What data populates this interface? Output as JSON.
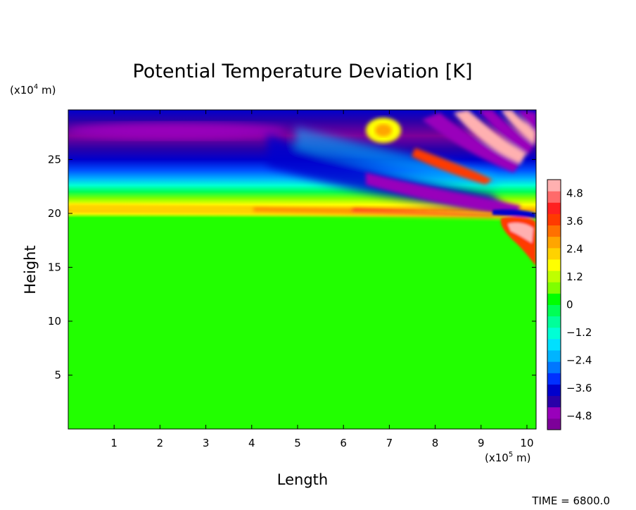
{
  "chart_data": {
    "type": "heatmap",
    "title": "Potential Temperature Deviation [K]",
    "xlabel": "Length",
    "ylabel": "Height",
    "x_unit": "(x10",
    "x_unit_exp": "5",
    "x_unit_tail": " m)",
    "y_unit": "(x10",
    "y_unit_exp": "4",
    "y_unit_tail": " m)",
    "xlim": [
      0,
      10.2
    ],
    "ylim": [
      0,
      29.6
    ],
    "x_ticks": [
      1,
      2,
      3,
      4,
      5,
      6,
      7,
      8,
      9,
      10
    ],
    "x_tick_labels": [
      "1",
      "2",
      "3",
      "4",
      "5",
      "6",
      "7",
      "8",
      "9",
      "10"
    ],
    "y_ticks": [
      5,
      10,
      15,
      20,
      25
    ],
    "y_tick_labels": [
      "5",
      "10",
      "15",
      "20",
      "25"
    ],
    "colorbar": {
      "range": [
        -5.4,
        5.4
      ],
      "ticks": [
        4.8,
        3.6,
        2.4,
        1.2,
        0,
        -1.2,
        -2.4,
        -3.6,
        -4.8
      ],
      "tick_labels": [
        "4.8",
        "3.6",
        "2.4",
        "1.2",
        "0",
        "−1.2",
        "−2.4",
        "−3.6",
        "−4.8"
      ],
      "colors": [
        "#7d0099",
        "#9900bb",
        "#2a00a8",
        "#0000cc",
        "#0030ff",
        "#0077ff",
        "#00b4ff",
        "#00e0ff",
        "#00ffd5",
        "#00ff9a",
        "#00ff55",
        "#00ff00",
        "#7fff00",
        "#bfff00",
        "#ffff00",
        "#ffd200",
        "#ffa500",
        "#ff7000",
        "#ff3a00",
        "#ff2020",
        "#ff6a6a",
        "#ffb0b0"
      ]
    },
    "field_description_levels": {
      "background": 0,
      "warm_band_height": 20.4,
      "cold_band_height": 28.0
    }
  },
  "time_label": "TIME = 6800.0"
}
